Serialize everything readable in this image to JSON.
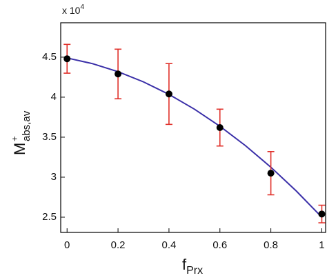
{
  "chart_data": {
    "type": "scatter",
    "y_label": {
      "main": "M",
      "sup": "+",
      "sub": "abs,av"
    },
    "x_label": {
      "main": "f",
      "sub": "Prx"
    },
    "multiplier": {
      "base": "x 10",
      "exponent": "4"
    },
    "points": {
      "x": [
        0,
        0.2,
        0.4,
        0.6,
        0.8,
        1
      ],
      "values": [
        4.48,
        4.29,
        4.04,
        3.62,
        3.05,
        2.54
      ],
      "errors": [
        0.18,
        0.31,
        0.38,
        0.23,
        0.27,
        0.11
      ],
      "color": "#000000",
      "error_color": "#e0302a"
    },
    "fit": {
      "x": [
        0,
        0.1,
        0.2,
        0.3,
        0.4,
        0.5,
        0.6,
        0.7,
        0.8,
        0.9,
        1
      ],
      "values": [
        4.49,
        4.419,
        4.319,
        4.191,
        4.035,
        3.85,
        3.637,
        3.395,
        3.125,
        2.827,
        2.5
      ],
      "color": "#3a2fa8"
    },
    "xlim": [
      -0.025,
      1.015
    ],
    "ylim": [
      2.31,
      4.93
    ],
    "xticks": [
      0,
      0.2,
      0.4,
      0.6,
      0.8,
      1
    ],
    "yticks": [
      2.5,
      3,
      3.5,
      4,
      4.5
    ]
  }
}
